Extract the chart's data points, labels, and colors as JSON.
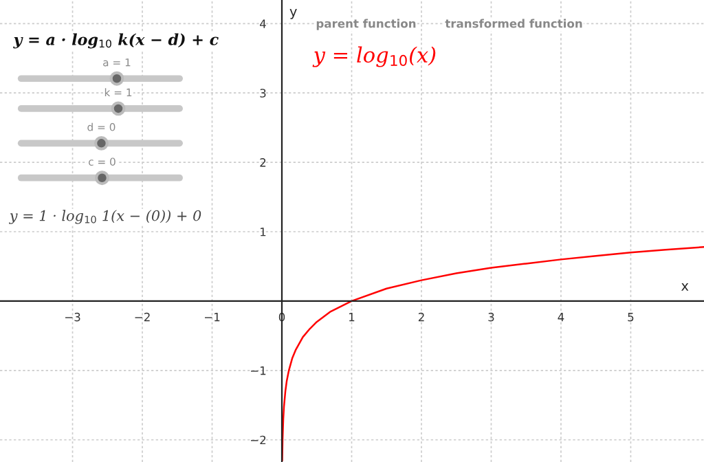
{
  "chart_data": {
    "type": "line",
    "xlabel": "x",
    "ylabel": "y",
    "annotations": [
      "y = a · log$_{10}$ k(x − d) + c",
      "a = 1",
      "k = 1",
      "d = 0",
      "c = 0",
      "y = 1 · log$_{10}$ 1(x − (0)) + 0",
      "parent function",
      "transformed function"
    ],
    "series": [
      {
        "name": "y = log$_{10}$(x)",
        "color": "#ff0000",
        "x": [
          0.005,
          0.01,
          0.02,
          0.03,
          0.05,
          0.07,
          0.1,
          0.15,
          0.2,
          0.3,
          0.4,
          0.5,
          0.7,
          1,
          1.5,
          2,
          2.5,
          3,
          3.5,
          4,
          4.5,
          5,
          5.5,
          6.05
        ],
        "values": [
          -2.3,
          -2,
          -1.7,
          -1.52,
          -1.3,
          -1.15,
          -1,
          -0.82,
          -0.7,
          -0.52,
          -0.4,
          -0.3,
          -0.15,
          0,
          0.18,
          0.3,
          0.4,
          0.48,
          0.54,
          0.6,
          0.65,
          0.7,
          0.74,
          0.78
        ]
      }
    ],
    "xlim": [
      -4.04,
      6.05
    ],
    "ylim": [
      -2.32,
      4.34
    ],
    "xticks": [
      {
        "value": -3,
        "label": "−3"
      },
      {
        "value": -2,
        "label": "−2"
      },
      {
        "value": -1,
        "label": "−1"
      },
      0,
      1,
      2,
      3,
      4,
      5
    ],
    "yticks": [
      {
        "value": -2,
        "label": "−2"
      },
      {
        "value": -1,
        "label": "−1"
      },
      1,
      2,
      3,
      4
    ],
    "grid": true
  }
}
